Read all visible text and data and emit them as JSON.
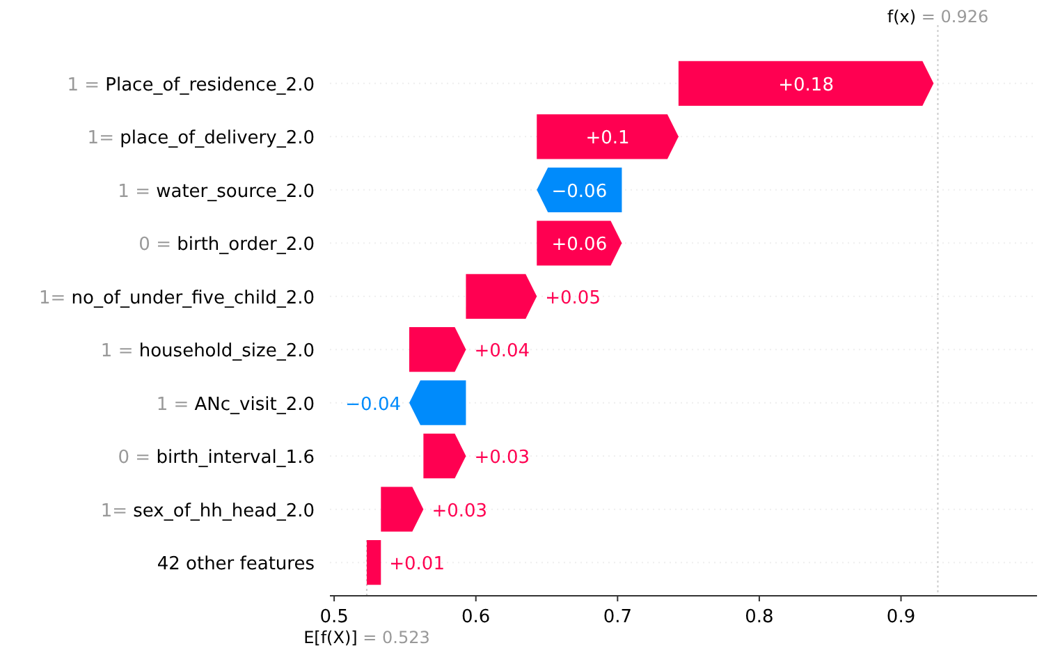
{
  "chart_data": {
    "type": "bar",
    "orientation": "horizontal",
    "categories": [
      "1 = Place_of_residence_2.0",
      "1= place_of_delivery_2.0",
      "1 = water_source_2.0",
      "0 = birth_order_2.0",
      "1= no_of_under_five_child_2.0",
      "1 = household_size_2.0",
      "1 = ANc_visit_2.0",
      "0 = birth_interval_1.6",
      "1= sex_of_hh_head_2.0",
      "42 other features"
    ],
    "values": [
      0.18,
      0.1,
      -0.06,
      0.06,
      0.05,
      0.04,
      -0.04,
      0.03,
      0.03,
      0.01
    ],
    "base": [
      0.743,
      0.643,
      0.703,
      0.643,
      0.593,
      0.553,
      0.593,
      0.563,
      0.533,
      0.523
    ],
    "value_labels": [
      "+0.18",
      "+0.1",
      "−0.06",
      "+0.06",
      "+0.05",
      "+0.04",
      "−0.04",
      "+0.03",
      "+0.03",
      "+0.01"
    ],
    "colors": [
      "#ff0051",
      "#ff0051",
      "#008bfb",
      "#ff0051",
      "#ff0051",
      "#ff0051",
      "#008bfb",
      "#ff0051",
      "#ff0051",
      "#ff0051"
    ],
    "xlim": [
      0.497,
      0.996
    ],
    "xticks": [
      0.5,
      0.6,
      0.7,
      0.8,
      0.9
    ],
    "grid": "y",
    "ref_lines": [
      {
        "axis": "x",
        "value": 0.523,
        "label": "E[f(X)] = 0.523",
        "color": "#cccccc",
        "line_style": "dotted"
      },
      {
        "axis": "x",
        "value": 0.926,
        "label": "f(x) = 0.926",
        "color": "#cccccc",
        "line_style": "dotted"
      }
    ]
  }
}
